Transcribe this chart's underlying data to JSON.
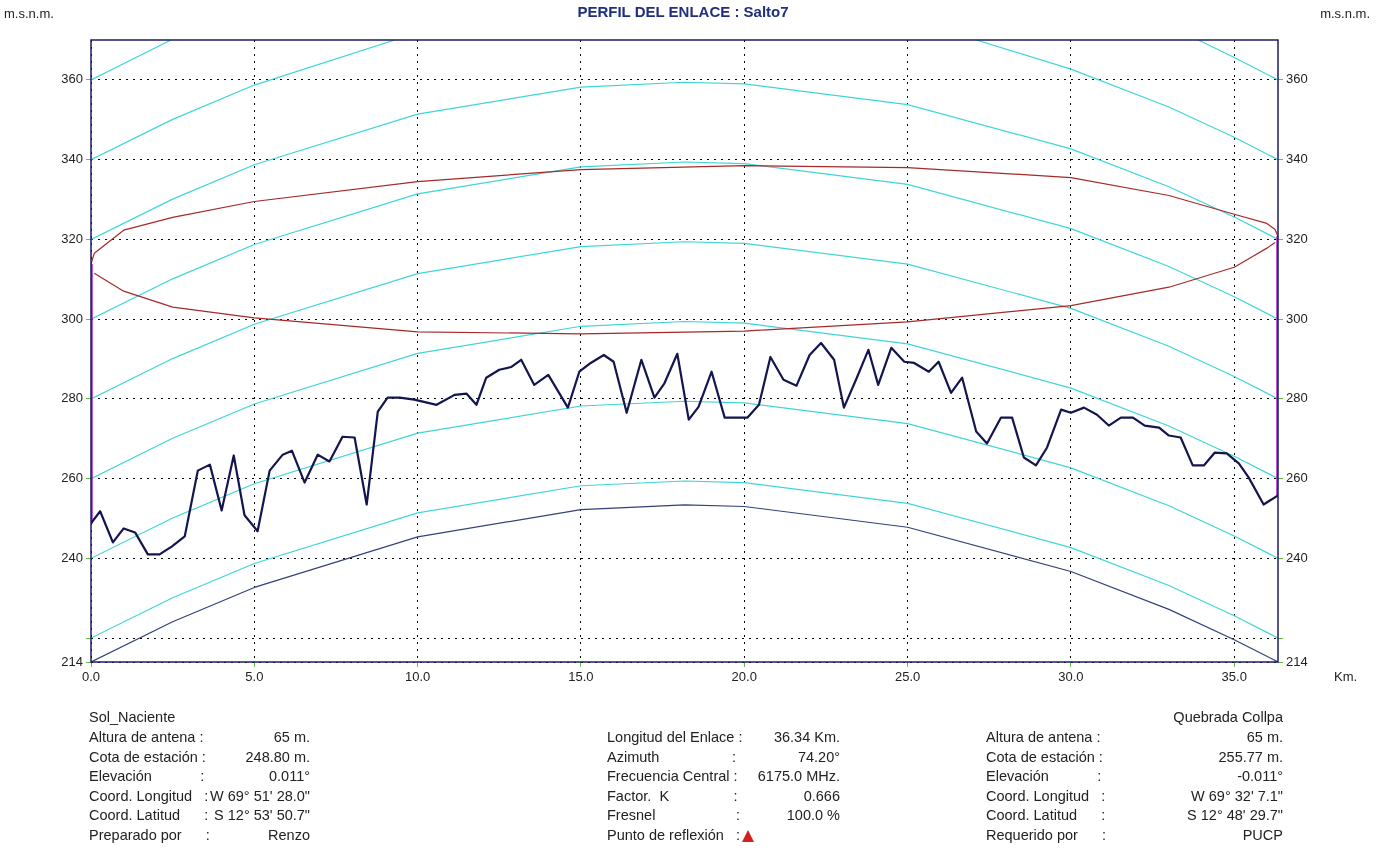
{
  "chart_data": {
    "type": "line",
    "title": "PERFIL DEL ENLACE : Salto7",
    "xlabel": "Km.",
    "ylabel": "m.s.n.m.",
    "y2label": "m.s.n.m.",
    "xlim": [
      0,
      36.34
    ],
    "xticks": [
      {
        "value": 0,
        "label": "0.0"
      },
      {
        "value": 5,
        "label": "5.0"
      },
      {
        "value": 10,
        "label": "10.0"
      },
      {
        "value": 15,
        "label": "15.0"
      },
      {
        "value": 20,
        "label": "20.0"
      },
      {
        "value": 25,
        "label": "25.0"
      },
      {
        "value": 30,
        "label": "30.0"
      },
      {
        "value": 35,
        "label": "35.0"
      }
    ],
    "ylim": [
      214,
      370
    ],
    "yticks": [
      214,
      {
        "value": 220,
        "label": null
      },
      240,
      260,
      280,
      300,
      320,
      340,
      360
    ],
    "y2lim": [
      214,
      370
    ],
    "y2ticks": [
      214,
      {
        "value": 220,
        "label": null
      },
      240,
      260,
      280,
      300,
      320,
      340,
      360
    ],
    "grid": true,
    "legend": false,
    "marker": "none",
    "line_style": "solid",
    "series": [
      {
        "type": "line",
        "color": "#14144f",
        "x": [
          0,
          0.28,
          0.67,
          1.0,
          1.35,
          1.74,
          2.1,
          2.48,
          2.87,
          3.27,
          3.64,
          4.0,
          4.37,
          4.7,
          5.1,
          5.47,
          5.87,
          6.15,
          6.54,
          6.94,
          7.3,
          7.7,
          8.07,
          8.44,
          8.78,
          9.08,
          9.45,
          9.9,
          10.58,
          11.13,
          11.5,
          11.8,
          12.1,
          12.5,
          12.87,
          13.17,
          13.57,
          14.0,
          14.6,
          14.95,
          15.3,
          15.7,
          16.0,
          16.4,
          16.85,
          17.25,
          17.55,
          17.95,
          18.3,
          18.6,
          19.0,
          19.4,
          20.1,
          20.45,
          20.8,
          21.2,
          21.6,
          22.0,
          22.35,
          22.75,
          23.05,
          23.42,
          23.8,
          24.1,
          24.5,
          24.9,
          25.2,
          25.65,
          25.95,
          26.33,
          26.67,
          27.1,
          27.43,
          27.86,
          28.2,
          28.56,
          28.93,
          29.27,
          29.7,
          30.0,
          30.4,
          30.8,
          31.16,
          31.53,
          31.9,
          32.26,
          32.7,
          33.0,
          33.36,
          33.73,
          34.07,
          34.4,
          34.77,
          35.14,
          35.44,
          35.9,
          36.34
        ],
        "values": [
          248.8,
          251.8,
          244,
          247.5,
          246.5,
          241,
          241,
          243,
          245.5,
          262,
          263.5,
          252,
          265.8,
          250.8,
          246.8,
          262,
          266,
          267,
          259,
          266,
          264.3,
          270.5,
          270.3,
          253.5,
          276.8,
          280.3,
          280.3,
          279.8,
          278.5,
          281,
          281.3,
          278.5,
          285.3,
          287.3,
          288,
          289.8,
          283.5,
          286,
          277.8,
          286.8,
          289,
          291,
          289.3,
          276.5,
          289.8,
          280.3,
          283.8,
          291.3,
          274.8,
          278,
          286.8,
          275.3,
          275.3,
          278.5,
          290.5,
          284.8,
          283.3,
          291,
          294,
          289.8,
          277.8,
          284.8,
          292.3,
          283.5,
          292.8,
          289.3,
          289,
          286.8,
          289.3,
          281.5,
          285.3,
          271.8,
          268.8,
          275.3,
          275.3,
          265.3,
          263.3,
          267.8,
          277.3,
          276.5,
          277.8,
          276,
          273.3,
          275.3,
          275.3,
          273.3,
          272.8,
          270.8,
          270.3,
          263.3,
          263.3,
          266.5,
          266.3,
          263.8,
          260.3,
          253.5,
          255.8
        ]
      },
      {
        "color": "#a52a2a",
        "x": [
          0,
          0.1,
          1,
          2.5,
          5,
          10,
          15,
          20,
          25,
          30,
          33,
          35,
          36,
          36.25,
          36.34
        ],
        "values": [
          313.8,
          316.5,
          322.3,
          325.5,
          329.5,
          334.5,
          337.5,
          338.5,
          338,
          335.5,
          331,
          326.3,
          324,
          322.5,
          320.8
        ]
      },
      {
        "color": "#a52a2a",
        "x": [
          0.1,
          1,
          2.5,
          5,
          10,
          15,
          20,
          25,
          30,
          33,
          35,
          36,
          36.25
        ],
        "values": [
          311.5,
          307,
          303,
          300.3,
          296.8,
          296.3,
          297,
          299.3,
          303.4,
          308,
          313,
          317.8,
          319.2
        ]
      },
      {
        "color": "#a526c8",
        "x": [
          0,
          0
        ],
        "values": [
          248.8,
          313.8
        ]
      },
      {
        "color": "#a526c8",
        "x": [
          36.34,
          36.34
        ],
        "values": [
          255.8,
          320.8
        ]
      },
      {
        "type": "line",
        "color": "#34427a",
        "x": [
          0,
          2.5,
          5,
          10,
          15,
          18.17,
          20,
          25,
          30,
          33,
          35,
          36.34
        ],
        "values": [
          214,
          224.1,
          232.7,
          245.4,
          252.2,
          253.4,
          253,
          247.8,
          236.7,
          227.2,
          219.6,
          214
        ]
      },
      {
        "type": "line",
        "color": "#3ed6d6",
        "x": [
          0,
          2.5,
          5,
          10,
          15,
          18.17,
          20,
          25,
          30,
          33,
          35,
          36.34
        ],
        "values": [
          220,
          230.1,
          238.7,
          251.4,
          258.2,
          259.4,
          259,
          253.8,
          242.7,
          233.2,
          225.6,
          220
        ]
      },
      {
        "type": "line",
        "color": "#3ed6d6",
        "x": [
          0,
          2.5,
          5,
          10,
          15,
          18.17,
          20,
          25,
          30,
          33,
          35,
          36.34
        ],
        "values": [
          240,
          250.1,
          258.7,
          271.4,
          278.2,
          279.4,
          279,
          273.8,
          262.7,
          253.2,
          245.6,
          240
        ]
      },
      {
        "type": "line",
        "color": "#3ed6d6",
        "x": [
          0,
          2.5,
          5,
          10,
          15,
          18.17,
          20,
          25,
          30,
          33,
          35,
          36.34
        ],
        "values": [
          260,
          270.1,
          278.7,
          291.4,
          298.2,
          299.4,
          299,
          293.8,
          282.7,
          273.2,
          265.6,
          260
        ]
      },
      {
        "type": "line",
        "color": "#3ed6d6",
        "x": [
          0,
          2.5,
          5,
          10,
          15,
          18.17,
          20,
          25,
          30,
          33,
          35,
          36.34
        ],
        "values": [
          280,
          290.1,
          298.7,
          311.4,
          318.2,
          319.4,
          319,
          313.8,
          302.7,
          293.2,
          285.6,
          280
        ]
      },
      {
        "type": "line",
        "color": "#3ed6d6",
        "x": [
          0,
          2.5,
          5,
          10,
          15,
          18.17,
          20,
          25,
          30,
          33,
          35,
          36.34
        ],
        "values": [
          300,
          310.1,
          318.7,
          331.4,
          338.2,
          339.4,
          339,
          333.8,
          322.7,
          313.2,
          305.6,
          300
        ]
      },
      {
        "type": "line",
        "color": "#3ed6d6",
        "x": [
          0,
          2.5,
          5,
          10,
          15,
          18.17,
          20,
          25,
          30,
          33,
          35,
          36.34
        ],
        "values": [
          320,
          330.1,
          338.7,
          351.4,
          358.2,
          359.4,
          359,
          353.8,
          342.7,
          333.2,
          325.6,
          320
        ]
      },
      {
        "type": "line",
        "color": "#3ed6d6",
        "x": [
          0,
          2.5,
          5,
          9.3
        ],
        "values": [
          340,
          350.1,
          358.7,
          370
        ]
      },
      {
        "type": "line",
        "color": "#3ed6d6",
        "x": [
          27.1,
          30,
          33,
          35,
          36.34
        ],
        "values": [
          370,
          362.7,
          353.2,
          345.6,
          340
        ]
      },
      {
        "type": "line",
        "color": "#3ed6d6",
        "x": [
          0,
          2.45
        ],
        "values": [
          360,
          370
        ]
      },
      {
        "type": "line",
        "color": "#3ed6d6",
        "x": [
          33.9,
          35,
          36.34
        ],
        "values": [
          370,
          365.6,
          360
        ]
      }
    ],
    "annotations": [
      "Sol_Naciente",
      "Altura de antena :",
      "65 m.",
      "Cota de estación :",
      "248.80 m.",
      "Elevación            :",
      "0.011°",
      "Coord. Longitud   :",
      "W 69° 51' 28.0\"",
      "Coord. Latitud      :",
      "S 12° 53' 50.7\"",
      "Preparado por      :",
      "Renzo",
      "Longitud del Enlace :",
      "36.34 Km.",
      "Azimuth                  :",
      "74.20°",
      "Frecuencia Central :",
      "6175.0 MHz.",
      "Factor.  K                :",
      "0.666",
      "Fresnel                    :",
      "100.0 %",
      "Punto de reflexión   :",
      "Quebrada Collpa",
      "Altura de antena :",
      "65 m.",
      "Cota de estación :",
      "255.77 m.",
      "Elevación            :",
      "-0.011°",
      "Coord. Longitud   :",
      "W 69° 32' 7.1\"",
      "Coord. Latitud      :",
      "S 12° 48' 29.7\"",
      "Requerido por      :",
      "PUCP"
    ]
  }
}
